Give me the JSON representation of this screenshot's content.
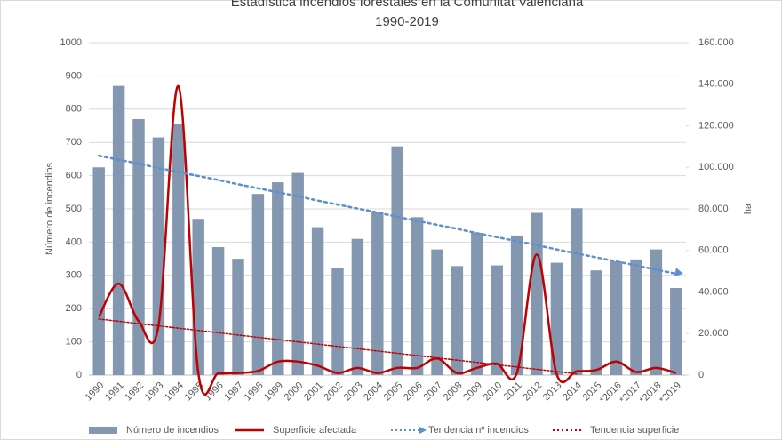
{
  "chart_data": {
    "type": "bar-line",
    "title": "Estadística incendios forestales en la Comunitat Valenciana",
    "subtitle": "1990-2019",
    "y_label": "Número de incendios",
    "y2_label": "ha",
    "categories": [
      "1990",
      "1991",
      "1992",
      "1993",
      "1994",
      "1995",
      "1996",
      "1997",
      "1998",
      "1999",
      "2000",
      "2001",
      "2002",
      "2003",
      "2004",
      "2005",
      "2006",
      "2007",
      "2008",
      "2009",
      "2010",
      "2011",
      "2012",
      "2013",
      "2014",
      "2015",
      "*2016",
      "*2017",
      "*2018",
      "*2019"
    ],
    "series": [
      {
        "name": "Número de incendios",
        "kind": "bar",
        "color": "#8497b0",
        "values": [
          625,
          870,
          770,
          715,
          755,
          470,
          385,
          350,
          545,
          580,
          608,
          445,
          322,
          410,
          490,
          688,
          475,
          378,
          328,
          428,
          330,
          420,
          488,
          338,
          502,
          315,
          342,
          348,
          378,
          262
        ]
      },
      {
        "name": "Superficie afectada",
        "kind": "line",
        "axis": "y2",
        "color": "#c00000",
        "style": "solid",
        "values": [
          28000,
          44000,
          26000,
          24000,
          139000,
          1000,
          800,
          1000,
          2000,
          6500,
          6500,
          4500,
          1000,
          3500,
          1000,
          3500,
          3500,
          8000,
          1000,
          3500,
          5500,
          1000,
          58000,
          500,
          1800,
          2500,
          6500,
          1500,
          3500,
          1000
        ]
      },
      {
        "name": "Tendencia nº incendios",
        "kind": "line",
        "color": "#5b8fd0",
        "style": "dotted",
        "arrow": true,
        "values": [
          660,
          648,
          636,
          623,
          611,
          599,
          587,
          574,
          562,
          550,
          538,
          525,
          513,
          501,
          489,
          476,
          464,
          452,
          440,
          427,
          415,
          403,
          391,
          378,
          366,
          354,
          342,
          330,
          317,
          305
        ]
      },
      {
        "name": "Tendencia superficie",
        "kind": "line",
        "axis": "y2",
        "color": "#c00000",
        "style": "dotted",
        "values": [
          27000,
          25900,
          24800,
          23700,
          22600,
          21500,
          20400,
          19300,
          18200,
          17100,
          16000,
          14900,
          13800,
          12700,
          11600,
          10500,
          9400,
          8300,
          7200,
          6100,
          5000,
          3900,
          2800,
          1700,
          600,
          null,
          null,
          null,
          null,
          null
        ]
      }
    ],
    "ylim": [
      0,
      1000
    ],
    "yticks": [
      0,
      100,
      200,
      300,
      400,
      500,
      600,
      700,
      800,
      900,
      1000
    ],
    "y2lim": [
      0,
      160000
    ],
    "y2ticks": [
      0,
      {
        "value": 20000,
        "label": "20.000"
      },
      {
        "value": 40000,
        "label": "40.000"
      },
      {
        "value": 60000,
        "label": "60.000"
      },
      {
        "value": 80000,
        "label": "80.000"
      },
      {
        "value": 100000,
        "label": "100.000"
      },
      {
        "value": 120000,
        "label": "120.000"
      },
      {
        "value": 140000,
        "label": "140.000"
      },
      {
        "value": 160000,
        "label": "160.000"
      }
    ],
    "grid": true,
    "legend": "bottom"
  }
}
